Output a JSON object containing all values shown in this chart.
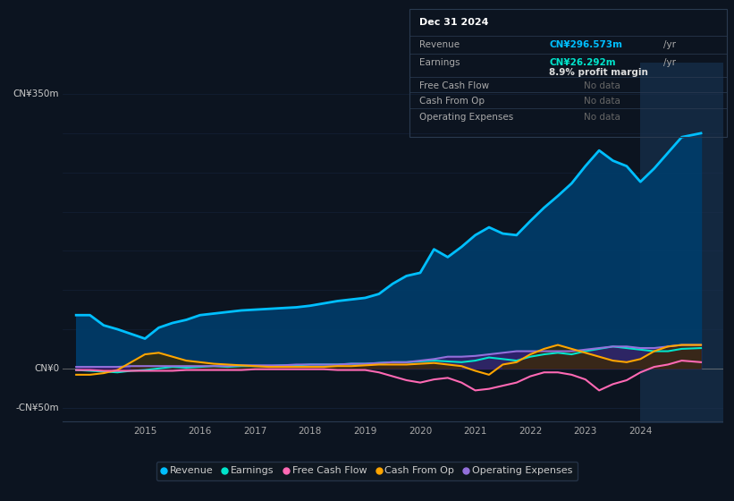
{
  "bg_color": "#0c1420",
  "plot_bg_color": "#0d1a2a",
  "grid_color": "#1e3050",
  "zero_line_color": "#888888",
  "ylabel_350": "CN¥350m",
  "ylabel_0": "CN¥0",
  "ylabel_neg50": "-CN¥50m",
  "ylim": [
    -70,
    390
  ],
  "xlim_start": 2013.5,
  "xlim_end": 2025.5,
  "xticks": [
    2015,
    2016,
    2017,
    2018,
    2019,
    2020,
    2021,
    2022,
    2023,
    2024
  ],
  "highlight_x_start": 2024.0,
  "highlight_x_end": 2025.5,
  "tooltip": {
    "date": "Dec 31 2024",
    "bg": "#111820",
    "border": "#2a3a50",
    "revenue_label": "Revenue",
    "revenue_value": "CN¥296.573m",
    "revenue_unit": "/yr",
    "revenue_color": "#00bfff",
    "earnings_label": "Earnings",
    "earnings_value": "CN¥26.292m",
    "earnings_unit": "/yr",
    "earnings_color": "#00e5cc",
    "margin_text": "8.9% profit margin",
    "fcf_label": "Free Cash Flow",
    "fcf_value": "No data",
    "cashop_label": "Cash From Op",
    "cashop_value": "No data",
    "opex_label": "Operating Expenses",
    "opex_value": "No data",
    "nodata_color": "#666666"
  },
  "legend": [
    {
      "label": "Revenue",
      "color": "#00bfff"
    },
    {
      "label": "Earnings",
      "color": "#00e5cc"
    },
    {
      "label": "Free Cash Flow",
      "color": "#ff69b4"
    },
    {
      "label": "Cash From Op",
      "color": "#ffa500"
    },
    {
      "label": "Operating Expenses",
      "color": "#9370db"
    }
  ],
  "revenue_x": [
    2013.75,
    2014.0,
    2014.25,
    2014.5,
    2014.75,
    2015.0,
    2015.25,
    2015.5,
    2015.75,
    2016.0,
    2016.25,
    2016.5,
    2016.75,
    2017.0,
    2017.25,
    2017.5,
    2017.75,
    2018.0,
    2018.25,
    2018.5,
    2018.75,
    2019.0,
    2019.25,
    2019.5,
    2019.75,
    2020.0,
    2020.25,
    2020.5,
    2020.75,
    2021.0,
    2021.25,
    2021.5,
    2021.75,
    2022.0,
    2022.25,
    2022.5,
    2022.75,
    2023.0,
    2023.25,
    2023.5,
    2023.75,
    2024.0,
    2024.25,
    2024.5,
    2024.75,
    2025.1
  ],
  "revenue_y": [
    68,
    68,
    55,
    50,
    44,
    38,
    52,
    58,
    62,
    68,
    70,
    72,
    74,
    75,
    76,
    77,
    78,
    80,
    83,
    86,
    88,
    90,
    95,
    108,
    118,
    122,
    152,
    142,
    155,
    170,
    180,
    172,
    170,
    188,
    205,
    220,
    236,
    258,
    278,
    265,
    258,
    238,
    255,
    275,
    295,
    300
  ],
  "earnings_x": [
    2013.75,
    2014.0,
    2014.25,
    2014.5,
    2014.75,
    2015.0,
    2015.25,
    2015.5,
    2015.75,
    2016.0,
    2016.25,
    2016.5,
    2016.75,
    2017.0,
    2017.25,
    2017.5,
    2017.75,
    2018.0,
    2018.25,
    2018.5,
    2018.75,
    2019.0,
    2019.25,
    2019.5,
    2019.75,
    2020.0,
    2020.25,
    2020.5,
    2020.75,
    2021.0,
    2021.25,
    2021.5,
    2021.75,
    2022.0,
    2022.25,
    2022.5,
    2022.75,
    2023.0,
    2023.25,
    2023.5,
    2023.75,
    2024.0,
    2024.25,
    2024.5,
    2024.75,
    2025.1
  ],
  "earnings_y": [
    -2,
    -3,
    -4,
    -5,
    -3,
    -2,
    0,
    2,
    1,
    2,
    3,
    2,
    3,
    3,
    3,
    4,
    4,
    5,
    5,
    5,
    6,
    6,
    7,
    8,
    8,
    9,
    10,
    9,
    8,
    10,
    14,
    12,
    10,
    15,
    18,
    20,
    18,
    22,
    25,
    28,
    26,
    24,
    22,
    22,
    25,
    26
  ],
  "fcf_x": [
    2013.75,
    2014.0,
    2014.25,
    2014.5,
    2014.75,
    2015.0,
    2015.25,
    2015.5,
    2015.75,
    2016.0,
    2016.25,
    2016.5,
    2016.75,
    2017.0,
    2017.25,
    2017.5,
    2017.75,
    2018.0,
    2018.25,
    2018.5,
    2018.75,
    2019.0,
    2019.25,
    2019.5,
    2019.75,
    2020.0,
    2020.25,
    2020.5,
    2020.75,
    2021.0,
    2021.25,
    2021.5,
    2021.75,
    2022.0,
    2022.25,
    2022.5,
    2022.75,
    2023.0,
    2023.25,
    2023.5,
    2023.75,
    2024.0,
    2024.25,
    2024.5,
    2024.75,
    2025.1
  ],
  "fcf_y": [
    -2,
    -2,
    -3,
    -3,
    -3,
    -3,
    -3,
    -3,
    -2,
    -2,
    -2,
    -2,
    -2,
    -1,
    -1,
    -1,
    -1,
    -1,
    -1,
    -2,
    -2,
    -2,
    -5,
    -10,
    -15,
    -18,
    -14,
    -12,
    -18,
    -28,
    -26,
    -22,
    -18,
    -10,
    -5,
    -5,
    -8,
    -14,
    -28,
    -20,
    -15,
    -5,
    2,
    5,
    10,
    8
  ],
  "cop_x": [
    2013.75,
    2014.0,
    2014.25,
    2014.5,
    2014.75,
    2015.0,
    2015.25,
    2015.5,
    2015.75,
    2016.0,
    2016.25,
    2016.5,
    2016.75,
    2017.0,
    2017.25,
    2017.5,
    2017.75,
    2018.0,
    2018.25,
    2018.5,
    2018.75,
    2019.0,
    2019.25,
    2019.5,
    2019.75,
    2020.0,
    2020.25,
    2020.5,
    2020.75,
    2021.0,
    2021.25,
    2021.5,
    2021.75,
    2022.0,
    2022.25,
    2022.5,
    2022.75,
    2023.0,
    2023.25,
    2023.5,
    2023.75,
    2024.0,
    2024.25,
    2024.5,
    2024.75,
    2025.1
  ],
  "cop_y": [
    -8,
    -8,
    -6,
    -2,
    8,
    18,
    20,
    15,
    10,
    8,
    6,
    5,
    4,
    3,
    2,
    2,
    2,
    2,
    2,
    3,
    3,
    4,
    5,
    5,
    5,
    6,
    7,
    5,
    3,
    -3,
    -8,
    5,
    8,
    18,
    25,
    30,
    25,
    20,
    15,
    10,
    8,
    12,
    22,
    28,
    30,
    30
  ],
  "opex_x": [
    2013.75,
    2014.0,
    2014.25,
    2014.5,
    2014.75,
    2015.0,
    2015.25,
    2015.5,
    2015.75,
    2016.0,
    2016.25,
    2016.5,
    2016.75,
    2017.0,
    2017.25,
    2017.5,
    2017.75,
    2018.0,
    2018.25,
    2018.5,
    2018.75,
    2019.0,
    2019.25,
    2019.5,
    2019.75,
    2020.0,
    2020.25,
    2020.5,
    2020.75,
    2021.0,
    2021.25,
    2021.5,
    2021.75,
    2022.0,
    2022.25,
    2022.5,
    2022.75,
    2023.0,
    2023.25,
    2023.5,
    2023.75,
    2024.0,
    2024.25,
    2024.5,
    2024.75,
    2025.1
  ],
  "opex_y": [
    2,
    2,
    2,
    2,
    3,
    3,
    3,
    3,
    3,
    3,
    3,
    3,
    4,
    4,
    4,
    4,
    5,
    5,
    5,
    5,
    6,
    6,
    7,
    8,
    8,
    10,
    12,
    15,
    15,
    16,
    18,
    20,
    22,
    22,
    22,
    22,
    22,
    24,
    26,
    28,
    28,
    26,
    26,
    28,
    30,
    30
  ],
  "revenue_color": "#00bfff",
  "revenue_fill": "#003d6b",
  "earnings_color": "#00e5cc",
  "earnings_fill_pos": "#004d44",
  "earnings_fill_neg": "#2d0a0a",
  "fcf_color": "#ff69b4",
  "cop_color": "#ffa500",
  "cop_fill_pos": "#3d2800",
  "opex_color": "#9370db",
  "opex_fill": "#3d1a6e"
}
